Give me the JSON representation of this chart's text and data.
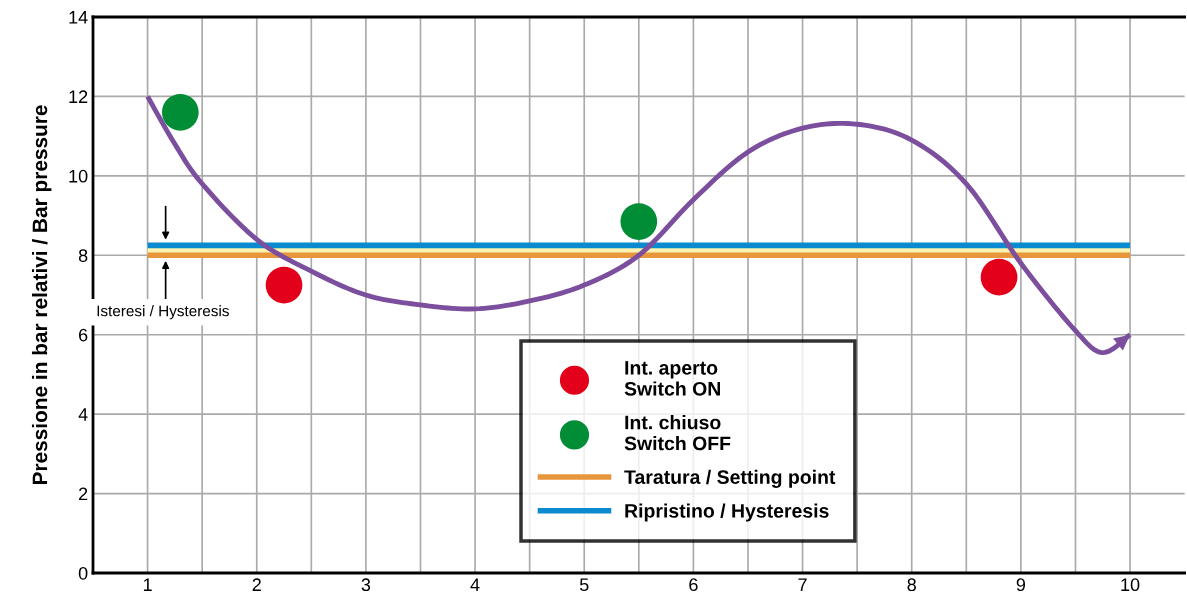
{
  "chart_data": {
    "type": "line",
    "ylabel": "Pressione in bar relativi / Bar pressure",
    "xlim": [
      0.5,
      10.5
    ],
    "ylim": [
      0,
      14
    ],
    "xticks": [
      1,
      {
        "value": 1.5,
        "label": null
      },
      2,
      {
        "value": 2.5,
        "label": null
      },
      3,
      {
        "value": 3.5,
        "label": null
      },
      4,
      {
        "value": 4.5,
        "label": null
      },
      5,
      {
        "value": 5.5,
        "label": null
      },
      6,
      {
        "value": 6.5,
        "label": null
      },
      7,
      {
        "value": 7.5,
        "label": null
      },
      8,
      {
        "value": 8.5,
        "label": null
      },
      9,
      {
        "value": 9.5,
        "label": null
      },
      10
    ],
    "yticks": [
      0,
      2,
      4,
      6,
      8,
      10,
      12,
      14
    ],
    "grid": true,
    "legend": "bottom",
    "series": [
      {
        "type": "scatter",
        "name": "Int. aperto\nSwitch ON",
        "color": "#e2001a",
        "x": [
          2.25,
          8.8
        ],
        "values": [
          7.25,
          7.45
        ]
      },
      {
        "type": "scatter",
        "name": "Int. chiuso\nSwitch OFF",
        "color": "#008d36",
        "x": [
          1.3,
          5.5
        ],
        "values": [
          11.6,
          8.85
        ]
      },
      {
        "type": "line",
        "name": "Taratura / Setting point",
        "color": "#e8963c",
        "x": [
          1,
          10
        ],
        "values": [
          8,
          8
        ]
      },
      {
        "type": "line",
        "name": "Ripristino / Hysteresis",
        "color": "#0a8bd0",
        "x": [
          1,
          10
        ],
        "values": [
          8.25,
          8.25
        ]
      },
      {
        "type": "line",
        "color": "#7b4f9d",
        "x": [
          1,
          1.25,
          1.5,
          2,
          2.5,
          3,
          3.5,
          4,
          4.5,
          5,
          5.5,
          6,
          6.5,
          7,
          7.5,
          8,
          8.5,
          9,
          9.5,
          9.75,
          10
        ],
        "values": [
          12.0,
          10.8,
          9.8,
          8.4,
          7.6,
          7.0,
          6.75,
          6.65,
          6.85,
          7.25,
          8.0,
          9.4,
          10.6,
          11.2,
          11.3,
          10.9,
          9.8,
          7.8,
          6.1,
          5.55,
          6.0
        ]
      }
    ],
    "bands": [
      {
        "axis": "y",
        "from": 8,
        "to": 8.25,
        "color": "#fdf3b0"
      }
    ],
    "annotations": [
      "Isteresi / Hysteresis"
    ]
  }
}
